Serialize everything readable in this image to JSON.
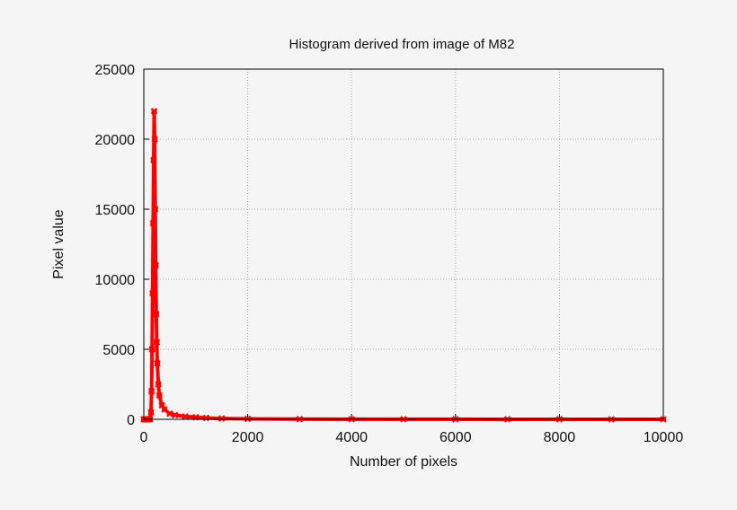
{
  "chart_data": {
    "type": "scatter",
    "title": "Histogram derived from image of M82",
    "xlabel": "Number of pixels",
    "ylabel": "Pixel value",
    "xlim": [
      0,
      10000
    ],
    "ylim": [
      0,
      25000
    ],
    "xticks": [
      0,
      2000,
      4000,
      6000,
      8000,
      10000
    ],
    "yticks": [
      0,
      5000,
      10000,
      15000,
      20000,
      25000
    ],
    "grid": true,
    "marker_color": "#ff0000",
    "series": [
      {
        "x": [
          0,
          20,
          40,
          60,
          80,
          100,
          120,
          140,
          150,
          160,
          170,
          180,
          190,
          200,
          210,
          220,
          230,
          240,
          250,
          260,
          280,
          300,
          350,
          400,
          500,
          600,
          800,
          1000,
          1200,
          1500,
          2000,
          3000,
          4000,
          5000,
          6000,
          7000,
          8000,
          9000,
          10000
        ],
        "y": [
          0,
          0,
          0,
          0,
          0,
          0,
          0,
          500,
          2000,
          5000,
          9000,
          14000,
          18500,
          22000,
          20000,
          15000,
          11000,
          7500,
          5500,
          4000,
          2500,
          1700,
          1000,
          700,
          400,
          300,
          200,
          150,
          100,
          60,
          30,
          15,
          10,
          7,
          5,
          4,
          3,
          2,
          2
        ]
      }
    ]
  }
}
